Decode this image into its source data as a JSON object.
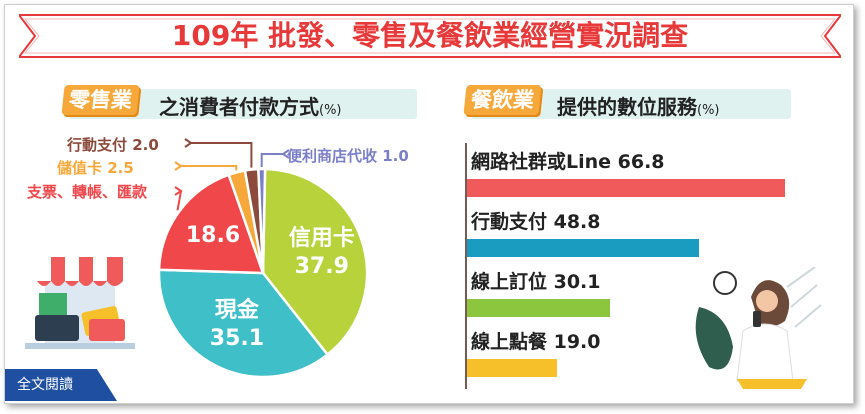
{
  "title": "109年 批發、零售及餐飲業經營實況調查",
  "left_panel": {
    "tag": "零售業",
    "heading": "之消費者付款方式",
    "unit": "(%)"
  },
  "right_panel": {
    "tag": "餐飲業",
    "heading": "提供的數位服務",
    "unit": "(%)"
  },
  "read_all_button": "全文閱讀",
  "colors": {
    "title": "#e8393a",
    "credit_card": "#b8d23c",
    "cash": "#3fbfc8",
    "transfer": "#f0474b",
    "stored_value": "#f7a83a",
    "mobile_pay": "#8b4a3c",
    "convenience_store": "#7b7fc8",
    "bar_social": "#f05a5a",
    "bar_mobile": "#1a9cc0",
    "bar_booking": "#8cc63e",
    "bar_ordering": "#f5c02a"
  },
  "chart_data": [
    {
      "type": "pie",
      "slices": [
        {
          "name": "信用卡",
          "value": 37.9,
          "label": "37.9"
        },
        {
          "name": "現金",
          "value": 35.1,
          "label": "35.1"
        },
        {
          "name": "支票、轉帳、匯款",
          "value": 18.6,
          "label": "18.6"
        },
        {
          "name": "儲值卡",
          "value": 2.5,
          "label": "儲值卡 2.5"
        },
        {
          "name": "行動支付",
          "value": 2.0,
          "label": "行動支付 2.0"
        },
        {
          "name": "便利商店代收",
          "value": 1.0,
          "label": "便利商店代收 1.0"
        }
      ]
    },
    {
      "type": "bar",
      "orientation": "horizontal",
      "categories": [
        "網路社群或Line",
        "行動支付",
        "線上訂位",
        "線上點餐"
      ],
      "values": [
        66.8,
        48.8,
        30.1,
        19.0
      ],
      "labels": [
        "網路社群或Line 66.8",
        "行動支付 48.8",
        "線上訂位 30.1",
        "線上點餐 19.0"
      ]
    }
  ]
}
